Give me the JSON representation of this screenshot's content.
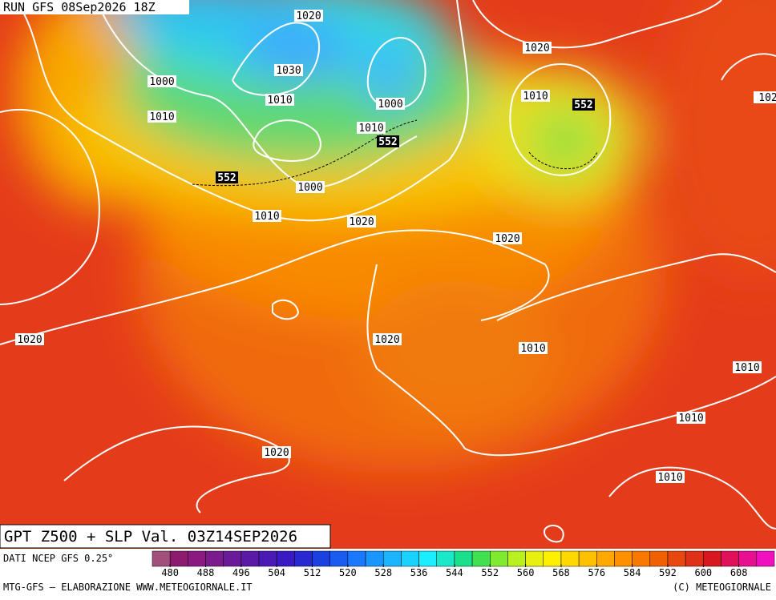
{
  "header": {
    "run": "RUN GFS 08Sep2026 18Z"
  },
  "map": {
    "isobar_labels": [
      "1020",
      "1030",
      "1000",
      "1010",
      "1000",
      "1010",
      "1010",
      "1020",
      "1010",
      "1000",
      "1010",
      "1020",
      "1020",
      "1020",
      "1020",
      "1010",
      "1010",
      "1010",
      "1020",
      "1010",
      "102"
    ],
    "z500_labels": [
      "552",
      "552",
      "552"
    ]
  },
  "title": "GPT Z500 + SLP Val. 03Z14SEP2026",
  "source": "DATI NCEP GFS 0.25°",
  "colorbar": {
    "colors": [
      "#a0507a",
      "#8c1a6e",
      "#8a1a82",
      "#7a1a8c",
      "#6a1a98",
      "#5a1aa6",
      "#4a1ab4",
      "#3a1ac2",
      "#2a28d0",
      "#1a40e0",
      "#1a5cf0",
      "#1a78ff",
      "#1a96ff",
      "#1ab4ff",
      "#1ad2ff",
      "#1aeeff",
      "#1ae8c8",
      "#1ae08c",
      "#40e050",
      "#80ea30",
      "#b8f020",
      "#e8f010",
      "#fff000",
      "#ffd800",
      "#ffc000",
      "#ffa800",
      "#ff9000",
      "#f87800",
      "#f06000",
      "#e84810",
      "#e03018",
      "#d81820",
      "#e0105a",
      "#e81090",
      "#f010c0"
    ],
    "ticks": [
      480,
      488,
      496,
      504,
      512,
      520,
      528,
      536,
      544,
      552,
      560,
      568,
      576,
      584,
      592,
      600,
      608
    ]
  },
  "footer": {
    "left": "MTG-GFS — ELABORAZIONE WWW.METEOGIORNALE.IT",
    "right": "(C) METEOGIORNALE"
  }
}
